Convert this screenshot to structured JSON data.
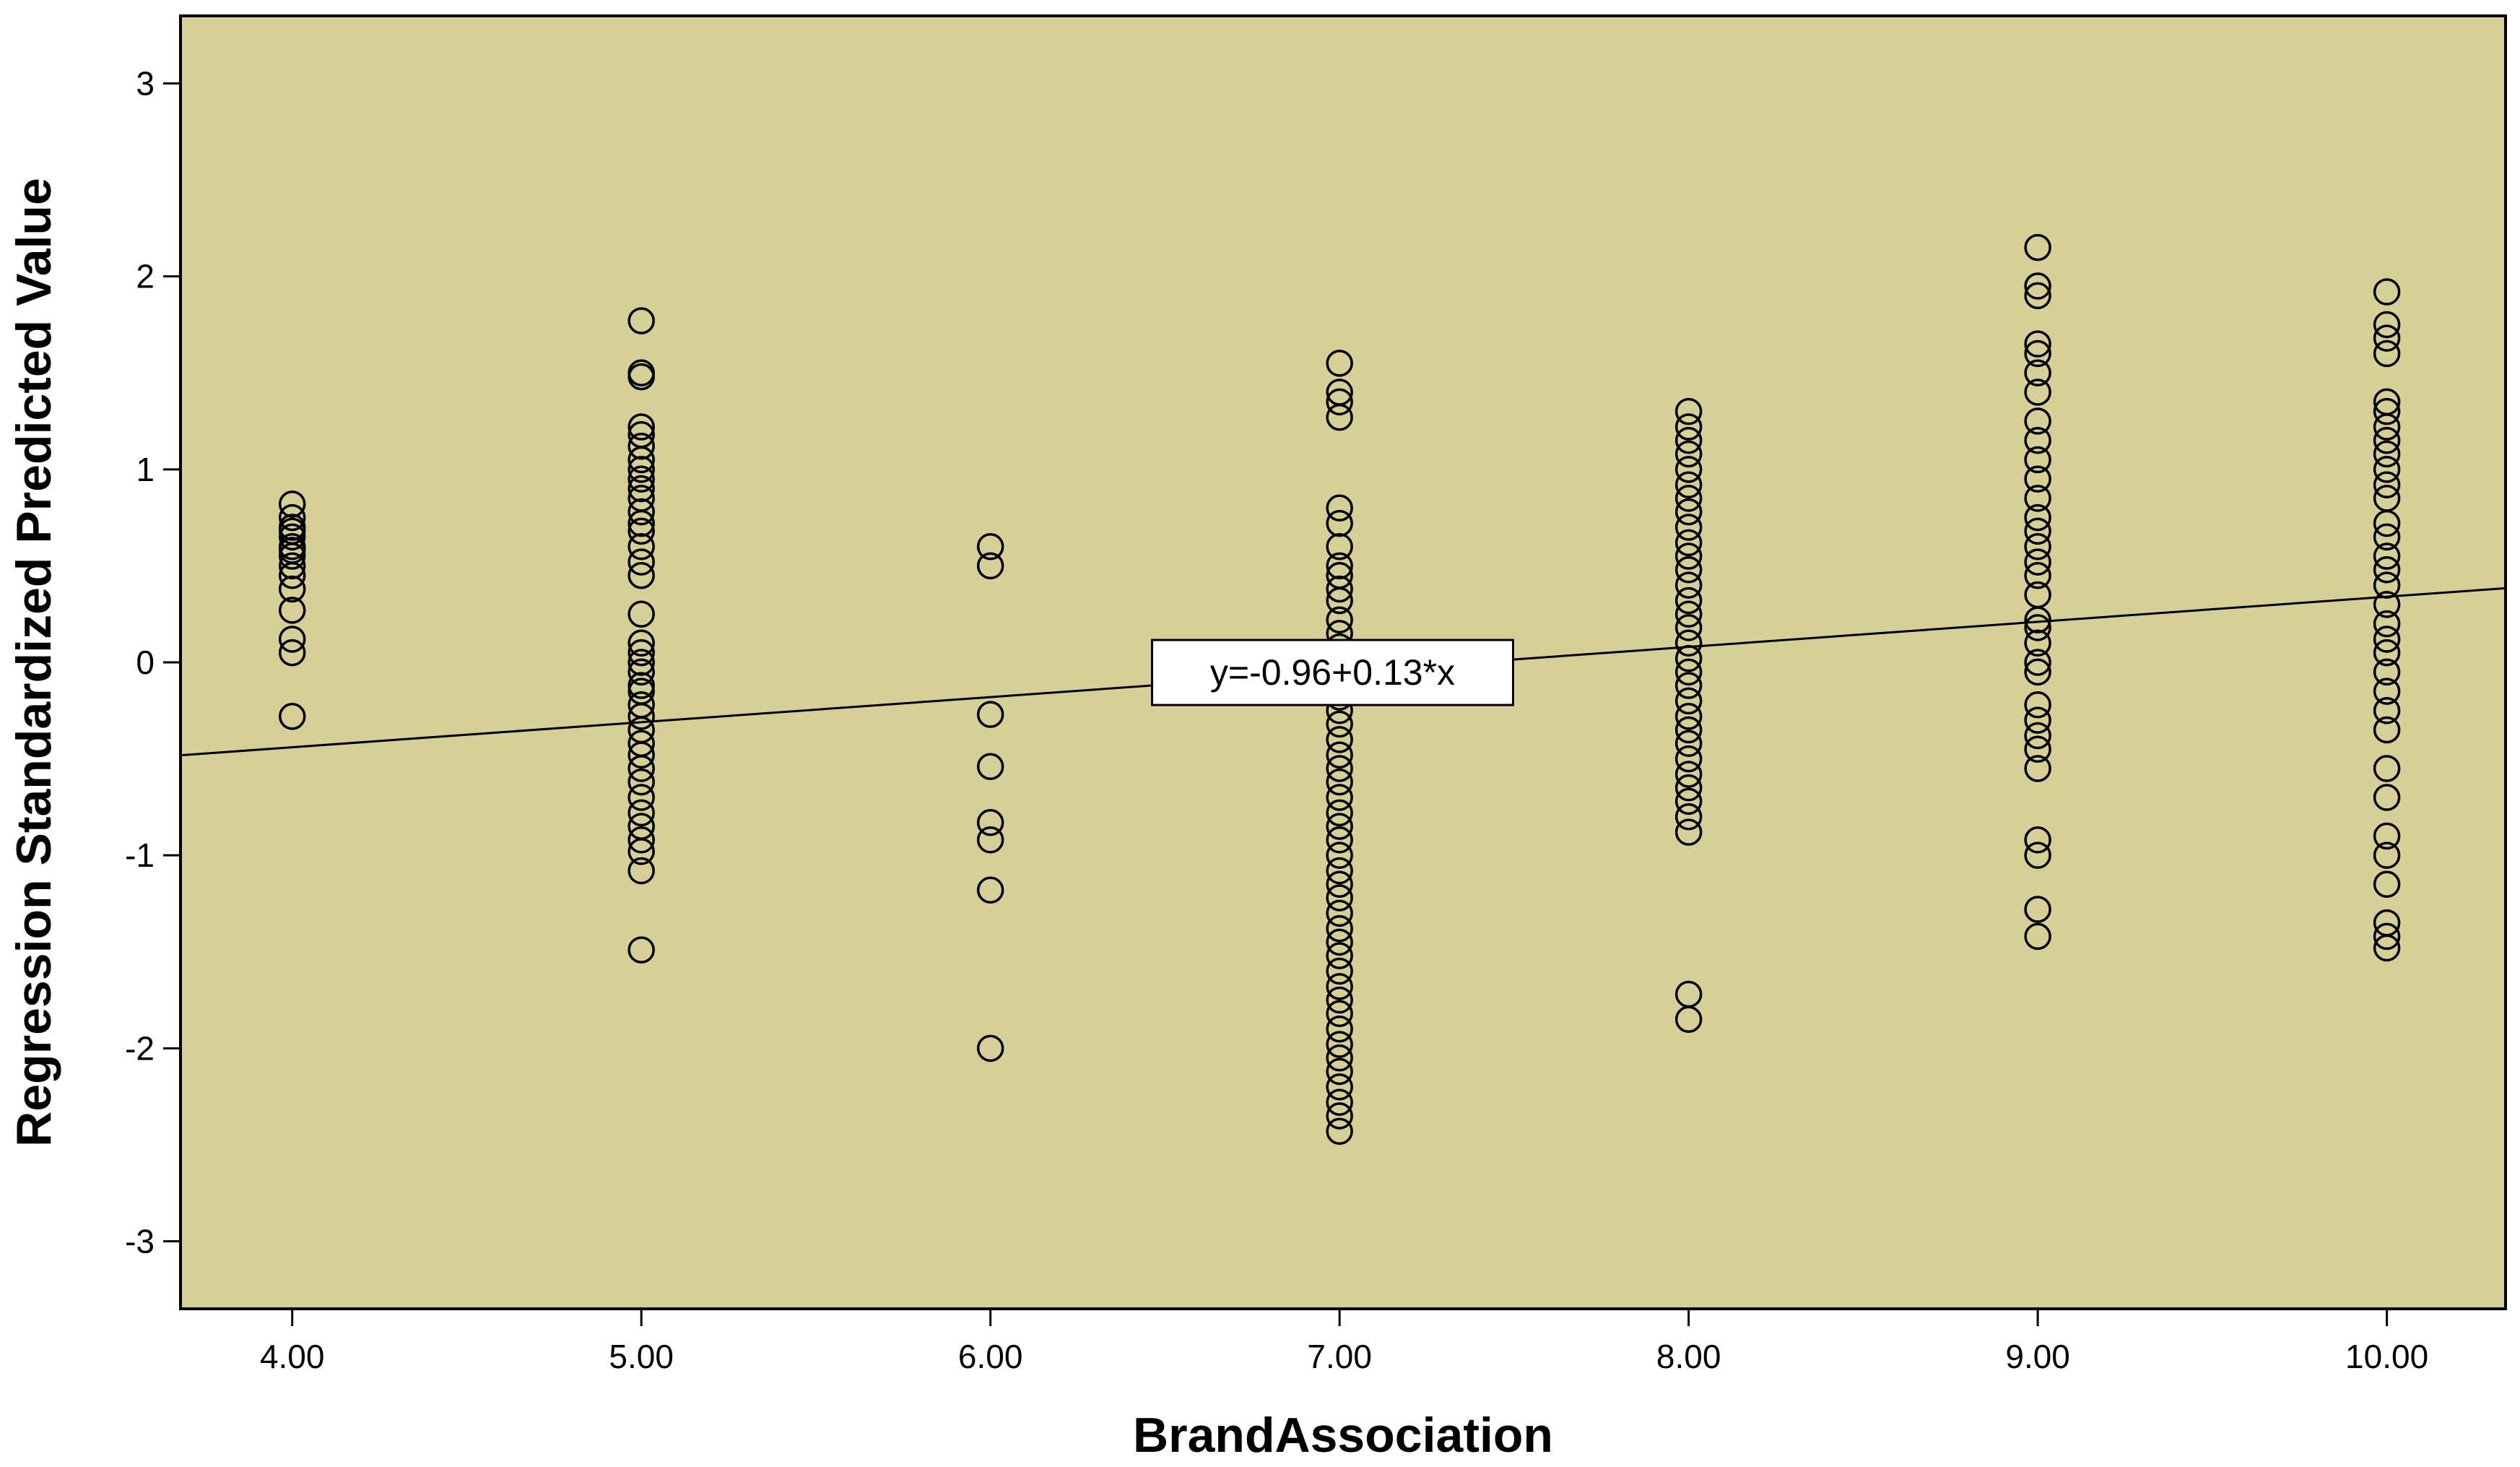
{
  "chart_data": {
    "type": "scatter",
    "xlabel": "BrandAssociation",
    "ylabel": "Regression Standardized Predicted Value",
    "xlim": [
      3.68,
      10.34
    ],
    "ylim": [
      -3.35,
      3.35
    ],
    "x_ticks": [
      4,
      5,
      6,
      7,
      8,
      9,
      10
    ],
    "x_tick_labels": [
      "4.00",
      "5.00",
      "6.00",
      "7.00",
      "8.00",
      "9.00",
      "10.00"
    ],
    "y_ticks": [
      3,
      2,
      1,
      0,
      -1,
      -2,
      -3
    ],
    "y_tick_labels": [
      "3",
      "2",
      "1",
      "0",
      "-1",
      "-2",
      "-3"
    ],
    "grid": false,
    "plot_background": "#d6cf98",
    "marker_color": "#000000",
    "fit_line": {
      "intercept": -0.96,
      "slope": 0.13,
      "label": "y=-0.96+0.13*x",
      "label_at_x": 6.98
    },
    "series": [
      {
        "x": 4,
        "y": [
          0.82,
          0.75,
          0.7,
          0.68,
          0.65,
          0.6,
          0.58,
          0.55,
          0.5,
          0.45,
          0.38,
          0.27,
          0.12,
          0.05,
          -0.28
        ]
      },
      {
        "x": 5,
        "y": [
          1.77,
          1.5,
          1.48,
          1.22,
          1.18,
          1.12,
          1.05,
          1.0,
          0.95,
          0.9,
          0.85,
          0.78,
          0.72,
          0.68,
          0.6,
          0.52,
          0.45,
          0.25,
          0.1,
          0.05,
          0.0,
          -0.05,
          -0.12,
          -0.15,
          -0.22,
          -0.28,
          -0.35,
          -0.42,
          -0.48,
          -0.55,
          -0.62,
          -0.7,
          -0.78,
          -0.85,
          -0.92,
          -0.98,
          -1.08,
          -1.49
        ]
      },
      {
        "x": 6,
        "y": [
          0.6,
          0.5,
          -0.27,
          -0.54,
          -0.83,
          -0.92,
          -1.18,
          -2.0
        ]
      },
      {
        "x": 7,
        "y": [
          1.55,
          1.4,
          1.35,
          1.27,
          0.8,
          0.72,
          0.6,
          0.5,
          0.45,
          0.38,
          0.32,
          0.22,
          0.15,
          0.08,
          0.0,
          -0.05,
          -0.12,
          -0.18,
          -0.25,
          -0.32,
          -0.4,
          -0.48,
          -0.55,
          -0.62,
          -0.7,
          -0.78,
          -0.85,
          -0.92,
          -1.0,
          -1.08,
          -1.15,
          -1.22,
          -1.3,
          -1.38,
          -1.45,
          -1.52,
          -1.6,
          -1.68,
          -1.75,
          -1.82,
          -1.9,
          -1.98,
          -2.05,
          -2.12,
          -2.2,
          -2.28,
          -2.35,
          -2.43
        ]
      },
      {
        "x": 8,
        "y": [
          1.3,
          1.22,
          1.15,
          1.08,
          1.0,
          0.92,
          0.85,
          0.78,
          0.7,
          0.62,
          0.55,
          0.48,
          0.4,
          0.32,
          0.25,
          0.18,
          0.1,
          0.02,
          -0.05,
          -0.12,
          -0.2,
          -0.28,
          -0.35,
          -0.42,
          -0.5,
          -0.58,
          -0.65,
          -0.72,
          -0.8,
          -0.88,
          -1.72,
          -1.85
        ]
      },
      {
        "x": 9,
        "y": [
          2.15,
          1.95,
          1.9,
          1.65,
          1.6,
          1.5,
          1.4,
          1.25,
          1.15,
          1.05,
          0.95,
          0.85,
          0.75,
          0.68,
          0.6,
          0.52,
          0.45,
          0.35,
          0.22,
          0.18,
          0.1,
          0.0,
          -0.05,
          -0.22,
          -0.3,
          -0.38,
          -0.45,
          -0.55,
          -0.92,
          -1.0,
          -1.28,
          -1.42
        ]
      },
      {
        "x": 10,
        "y": [
          1.92,
          1.75,
          1.68,
          1.6,
          1.35,
          1.3,
          1.22,
          1.15,
          1.08,
          1.0,
          0.92,
          0.85,
          0.72,
          0.65,
          0.55,
          0.48,
          0.4,
          0.3,
          0.2,
          0.12,
          0.05,
          -0.05,
          -0.15,
          -0.25,
          -0.35,
          -0.55,
          -0.7,
          -0.9,
          -1.0,
          -1.15,
          -1.35,
          -1.42,
          -1.48
        ]
      }
    ]
  }
}
